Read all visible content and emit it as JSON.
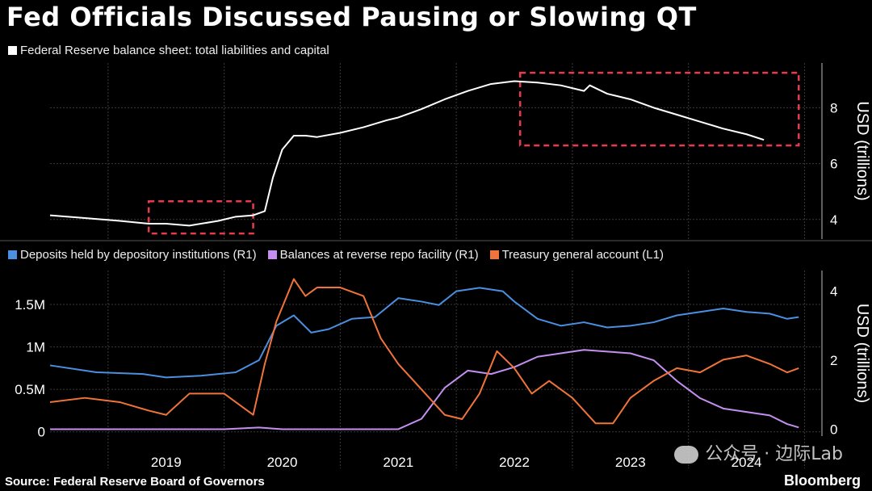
{
  "title": "Fed Officials Discussed Pausing or Slowing QT",
  "source": "Source: Federal Reserve Board of Governors",
  "brand": "Bloomberg",
  "watermark": "公众号 · 边际Lab",
  "colors": {
    "white": "#ffffff",
    "blue": "#4a8fe0",
    "purple": "#c48ff0",
    "orange": "#f0743a",
    "highlight": "#e83a4c"
  },
  "chart_data": [
    {
      "type": "line",
      "legend": "Federal Reserve balance sheet: total liabilities and capital",
      "ylabel": "USD (trillions)",
      "ylim": [
        3.3,
        9.6
      ],
      "yticks": [
        4,
        6,
        8
      ],
      "highlight_boxes": [
        {
          "x": [
            2018.85,
            2019.75
          ],
          "y": [
            3.5,
            4.65
          ]
        },
        {
          "x": [
            2022.05,
            2024.45
          ],
          "y": [
            6.65,
            9.25
          ]
        }
      ],
      "series": [
        {
          "name": "Federal Reserve balance sheet: total liabilities and capital",
          "x": [
            2018.0,
            2018.3,
            2018.6,
            2018.85,
            2019.0,
            2019.2,
            2019.45,
            2019.6,
            2019.75,
            2019.85,
            2019.92,
            2020.0,
            2020.1,
            2020.2,
            2020.3,
            2020.5,
            2020.7,
            2020.9,
            2021.0,
            2021.2,
            2021.4,
            2021.6,
            2021.8,
            2022.0,
            2022.2,
            2022.4,
            2022.6,
            2022.65,
            2022.8,
            2023.0,
            2023.2,
            2023.4,
            2023.6,
            2023.8,
            2024.0,
            2024.15
          ],
          "values": [
            4.15,
            4.05,
            3.95,
            3.85,
            3.85,
            3.78,
            3.95,
            4.1,
            4.15,
            4.3,
            5.5,
            6.5,
            7.0,
            7.0,
            6.95,
            7.1,
            7.3,
            7.55,
            7.65,
            7.95,
            8.3,
            8.6,
            8.85,
            8.95,
            8.9,
            8.8,
            8.6,
            8.8,
            8.5,
            8.3,
            8.0,
            7.75,
            7.5,
            7.25,
            7.05,
            6.85
          ]
        }
      ]
    },
    {
      "type": "line",
      "legend": [
        {
          "label": "Deposits held by depository institutions (R1)",
          "color": "#4a8fe0"
        },
        {
          "label": "Balances at reverse repo facility (R1)",
          "color": "#c48ff0"
        },
        {
          "label": "Treasury general account  (L1)",
          "color": "#f0743a"
        }
      ],
      "left_axis": {
        "ylim": [
          -0.05,
          1.9
        ],
        "ticks": [
          0,
          0.5,
          1,
          1.5
        ],
        "tick_labels": [
          "0",
          "0.5M",
          "1M",
          "1.5M"
        ]
      },
      "right_axis": {
        "ylabel": "USD (trillions)",
        "ylim": [
          -0.2,
          4.6
        ],
        "ticks": [
          0,
          2,
          4
        ]
      },
      "xlim": [
        2018.0,
        2024.65
      ],
      "x_ticks": [
        "2019",
        "2020",
        "2021",
        "2022",
        "2023",
        "2024"
      ],
      "series": [
        {
          "name": "Deposits held by depository institutions (R1)",
          "axis": "right",
          "x": [
            2018.0,
            2018.4,
            2018.8,
            2019.0,
            2019.3,
            2019.6,
            2019.8,
            2019.95,
            2020.1,
            2020.25,
            2020.4,
            2020.6,
            2020.8,
            2021.0,
            2021.2,
            2021.35,
            2021.5,
            2021.7,
            2021.9,
            2022.0,
            2022.2,
            2022.4,
            2022.6,
            2022.8,
            2023.0,
            2023.2,
            2023.4,
            2023.6,
            2023.8,
            2024.0,
            2024.2,
            2024.35,
            2024.45
          ],
          "values": [
            1.85,
            1.65,
            1.6,
            1.5,
            1.55,
            1.65,
            2.0,
            3.0,
            3.3,
            2.8,
            2.9,
            3.2,
            3.25,
            3.8,
            3.7,
            3.6,
            4.0,
            4.1,
            4.0,
            3.7,
            3.2,
            3.0,
            3.1,
            2.95,
            3.0,
            3.1,
            3.3,
            3.4,
            3.5,
            3.4,
            3.35,
            3.2,
            3.25
          ]
        },
        {
          "name": "Balances at reverse repo facility (R1)",
          "axis": "right",
          "x": [
            2018.0,
            2018.5,
            2019.0,
            2019.5,
            2019.8,
            2020.0,
            2020.5,
            2021.0,
            2021.2,
            2021.4,
            2021.6,
            2021.8,
            2022.0,
            2022.2,
            2022.4,
            2022.6,
            2022.8,
            2023.0,
            2023.2,
            2023.4,
            2023.6,
            2023.8,
            2024.0,
            2024.2,
            2024.35,
            2024.45
          ],
          "values": [
            0.0,
            0.0,
            0.0,
            0.0,
            0.05,
            0.0,
            0.0,
            0.0,
            0.3,
            1.2,
            1.7,
            1.6,
            1.8,
            2.1,
            2.2,
            2.3,
            2.25,
            2.2,
            2.0,
            1.4,
            0.9,
            0.6,
            0.5,
            0.4,
            0.15,
            0.05
          ]
        },
        {
          "name": "Treasury general account  (L1)",
          "axis": "left",
          "x": [
            2018.0,
            2018.3,
            2018.6,
            2018.85,
            2019.0,
            2019.2,
            2019.5,
            2019.75,
            2019.85,
            2019.95,
            2020.1,
            2020.2,
            2020.3,
            2020.5,
            2020.7,
            2020.85,
            2021.0,
            2021.2,
            2021.4,
            2021.55,
            2021.7,
            2021.85,
            2022.0,
            2022.15,
            2022.3,
            2022.5,
            2022.7,
            2022.85,
            2023.0,
            2023.2,
            2023.4,
            2023.6,
            2023.8,
            2024.0,
            2024.2,
            2024.35,
            2024.45
          ],
          "values": [
            0.35,
            0.4,
            0.35,
            0.25,
            0.2,
            0.45,
            0.45,
            0.2,
            0.8,
            1.3,
            1.8,
            1.6,
            1.7,
            1.7,
            1.6,
            1.1,
            0.8,
            0.5,
            0.2,
            0.15,
            0.45,
            0.95,
            0.75,
            0.45,
            0.6,
            0.4,
            0.1,
            0.1,
            0.4,
            0.6,
            0.75,
            0.7,
            0.85,
            0.9,
            0.8,
            0.7,
            0.75
          ]
        }
      ]
    }
  ]
}
